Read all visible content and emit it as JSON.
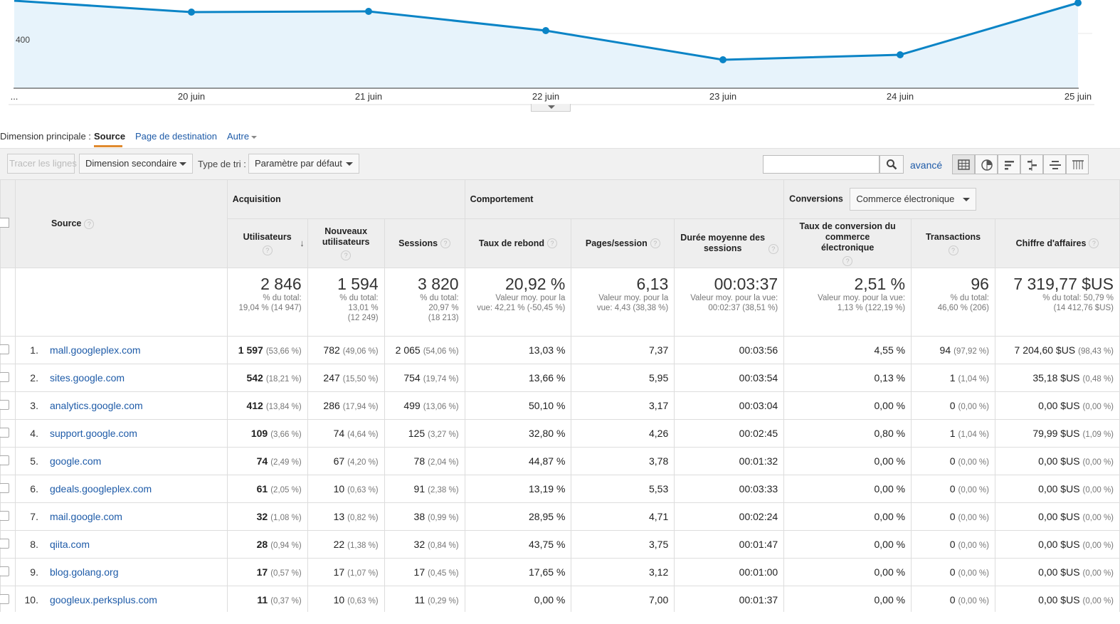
{
  "chart": {
    "y_label": "400",
    "x_labels": [
      "...",
      "20 juin",
      "21 juin",
      "22 juin",
      "23 juin",
      "24 juin",
      "25 juin"
    ],
    "line_color": "#0b84c6",
    "fill_color": "#e7f3fb"
  },
  "dimension": {
    "label": "Dimension principale :",
    "selected": "Source",
    "link": "Page de destination",
    "other": "Autre"
  },
  "toolbar": {
    "plot_rows": "Tracer les lignes",
    "secondary_dimension": "Dimension secondaire",
    "sort_label": "Type de tri :",
    "sort_value": "Paramètre par défaut",
    "advanced": "avancé",
    "view_icons": [
      "table-view-icon",
      "pie-view-icon",
      "performance-view-icon",
      "comparison-view-icon",
      "term-cloud-icon",
      "pivot-view-icon"
    ]
  },
  "table": {
    "groups": {
      "acquisition": "Acquisition",
      "behavior": "Comportement",
      "conversions": "Conversions",
      "conversion_select": "Commerce électronique"
    },
    "source_header": "Source",
    "columns": [
      "Utilisateurs",
      "Nouveaux utilisateurs",
      "Sessions",
      "Taux de rebond",
      "Pages/session",
      "Durée moyenne des sessions",
      "Taux de conversion du commerce électronique",
      "Transactions",
      "Chiffre d'affaires"
    ],
    "totals": [
      {
        "value": "2 846",
        "sub1": "% du total:",
        "sub2": "19,04 % (14 947)"
      },
      {
        "value": "1 594",
        "sub1": "% du total:",
        "sub2": "13,01 %",
        "sub3": "(12 249)"
      },
      {
        "value": "3 820",
        "sub1": "% du total:",
        "sub2": "20,97 %",
        "sub3": "(18 213)"
      },
      {
        "value": "20,92 %",
        "sub1": "Valeur moy. pour la",
        "sub2": "vue: 42,21 % (-50,45 %)"
      },
      {
        "value": "6,13",
        "sub1": "Valeur moy. pour la",
        "sub2": "vue: 4,43 (38,38 %)"
      },
      {
        "value": "00:03:37",
        "sub1": "Valeur moy. pour la vue:",
        "sub2": "00:02:37 (38,51 %)"
      },
      {
        "value": "2,51 %",
        "sub1": "Valeur moy. pour la vue:",
        "sub2": "1,13 % (122,19 %)"
      },
      {
        "value": "96",
        "sub1": "% du total:",
        "sub2": "46,60 % (206)"
      },
      {
        "value": "7 319,77 $US",
        "sub1": "% du total: 50,79 %",
        "sub2": "(14 412,76 $US)"
      }
    ],
    "rows": [
      {
        "idx": "1.",
        "source": "mall.googleplex.com",
        "users": "1 597",
        "users_pct": "(53,66 %)",
        "new": "782",
        "new_pct": "(49,06 %)",
        "sessions": "2 065",
        "sessions_pct": "(54,06 %)",
        "bounce": "13,03 %",
        "pages": "7,37",
        "duration": "00:03:56",
        "conv": "4,55 %",
        "trans": "94",
        "trans_pct": "(97,92 %)",
        "revenue": "7 204,60 $US",
        "revenue_pct": "(98,43 %)"
      },
      {
        "idx": "2.",
        "source": "sites.google.com",
        "users": "542",
        "users_pct": "(18,21 %)",
        "new": "247",
        "new_pct": "(15,50 %)",
        "sessions": "754",
        "sessions_pct": "(19,74 %)",
        "bounce": "13,66 %",
        "pages": "5,95",
        "duration": "00:03:54",
        "conv": "0,13 %",
        "trans": "1",
        "trans_pct": "(1,04 %)",
        "revenue": "35,18 $US",
        "revenue_pct": "(0,48 %)"
      },
      {
        "idx": "3.",
        "source": "analytics.google.com",
        "users": "412",
        "users_pct": "(13,84 %)",
        "new": "286",
        "new_pct": "(17,94 %)",
        "sessions": "499",
        "sessions_pct": "(13,06 %)",
        "bounce": "50,10 %",
        "pages": "3,17",
        "duration": "00:03:04",
        "conv": "0,00 %",
        "trans": "0",
        "trans_pct": "(0,00 %)",
        "revenue": "0,00 $US",
        "revenue_pct": "(0,00 %)"
      },
      {
        "idx": "4.",
        "source": "support.google.com",
        "users": "109",
        "users_pct": "(3,66 %)",
        "new": "74",
        "new_pct": "(4,64 %)",
        "sessions": "125",
        "sessions_pct": "(3,27 %)",
        "bounce": "32,80 %",
        "pages": "4,26",
        "duration": "00:02:45",
        "conv": "0,80 %",
        "trans": "1",
        "trans_pct": "(1,04 %)",
        "revenue": "79,99 $US",
        "revenue_pct": "(1,09 %)"
      },
      {
        "idx": "5.",
        "source": "google.com",
        "users": "74",
        "users_pct": "(2,49 %)",
        "new": "67",
        "new_pct": "(4,20 %)",
        "sessions": "78",
        "sessions_pct": "(2,04 %)",
        "bounce": "44,87 %",
        "pages": "3,78",
        "duration": "00:01:32",
        "conv": "0,00 %",
        "trans": "0",
        "trans_pct": "(0,00 %)",
        "revenue": "0,00 $US",
        "revenue_pct": "(0,00 %)"
      },
      {
        "idx": "6.",
        "source": "gdeals.googleplex.com",
        "users": "61",
        "users_pct": "(2,05 %)",
        "new": "10",
        "new_pct": "(0,63 %)",
        "sessions": "91",
        "sessions_pct": "(2,38 %)",
        "bounce": "13,19 %",
        "pages": "5,53",
        "duration": "00:03:33",
        "conv": "0,00 %",
        "trans": "0",
        "trans_pct": "(0,00 %)",
        "revenue": "0,00 $US",
        "revenue_pct": "(0,00 %)"
      },
      {
        "idx": "7.",
        "source": "mail.google.com",
        "users": "32",
        "users_pct": "(1,08 %)",
        "new": "13",
        "new_pct": "(0,82 %)",
        "sessions": "38",
        "sessions_pct": "(0,99 %)",
        "bounce": "28,95 %",
        "pages": "4,71",
        "duration": "00:02:24",
        "conv": "0,00 %",
        "trans": "0",
        "trans_pct": "(0,00 %)",
        "revenue": "0,00 $US",
        "revenue_pct": "(0,00 %)"
      },
      {
        "idx": "8.",
        "source": "qiita.com",
        "users": "28",
        "users_pct": "(0,94 %)",
        "new": "22",
        "new_pct": "(1,38 %)",
        "sessions": "32",
        "sessions_pct": "(0,84 %)",
        "bounce": "43,75 %",
        "pages": "3,75",
        "duration": "00:01:47",
        "conv": "0,00 %",
        "trans": "0",
        "trans_pct": "(0,00 %)",
        "revenue": "0,00 $US",
        "revenue_pct": "(0,00 %)"
      },
      {
        "idx": "9.",
        "source": "blog.golang.org",
        "users": "17",
        "users_pct": "(0,57 %)",
        "new": "17",
        "new_pct": "(1,07 %)",
        "sessions": "17",
        "sessions_pct": "(0,45 %)",
        "bounce": "17,65 %",
        "pages": "3,12",
        "duration": "00:01:00",
        "conv": "0,00 %",
        "trans": "0",
        "trans_pct": "(0,00 %)",
        "revenue": "0,00 $US",
        "revenue_pct": "(0,00 %)"
      },
      {
        "idx": "10.",
        "source": "googleux.perksplus.com",
        "users": "11",
        "users_pct": "(0,37 %)",
        "new": "10",
        "new_pct": "(0,63 %)",
        "sessions": "11",
        "sessions_pct": "(0,29 %)",
        "bounce": "0,00 %",
        "pages": "7,00",
        "duration": "00:01:37",
        "conv": "0,00 %",
        "trans": "0",
        "trans_pct": "(0,00 %)",
        "revenue": "0,00 $US",
        "revenue_pct": "(0,00 %)"
      }
    ]
  },
  "colors": {
    "link": "#1e5ba8",
    "accent_underline": "#e08a2e"
  }
}
